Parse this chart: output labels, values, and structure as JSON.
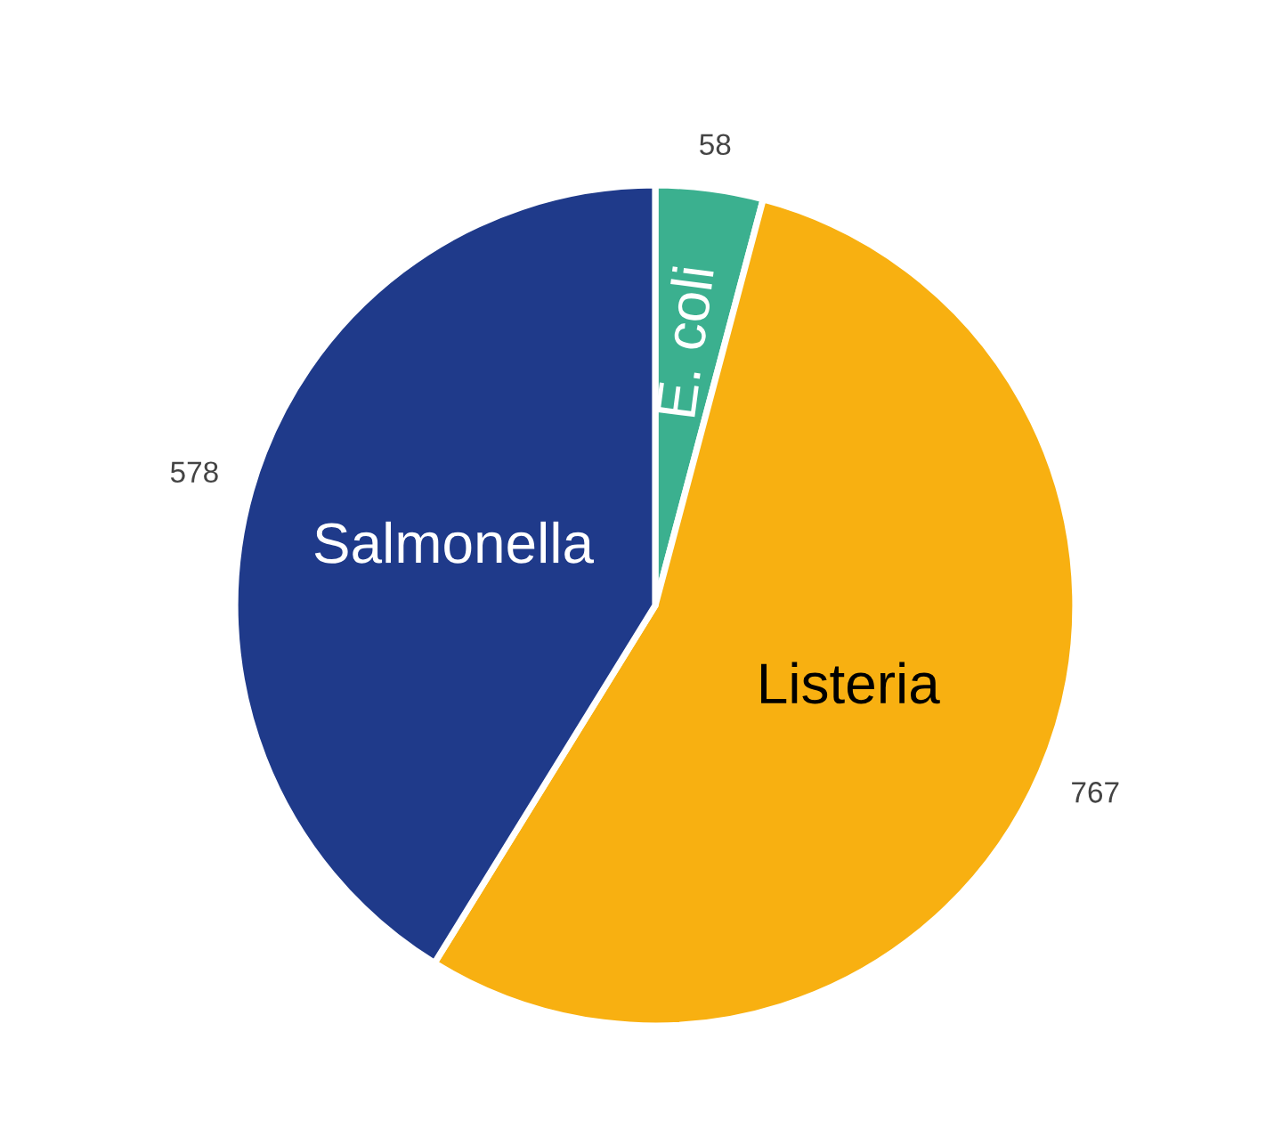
{
  "chart_data": {
    "type": "pie",
    "categories": [
      "E. coli",
      "Listeria",
      "Salmonella"
    ],
    "values": [
      58,
      767,
      578
    ],
    "colors": [
      "#3bb08f",
      "#f8b011",
      "#1f3a8a"
    ],
    "data_labels": true
  }
}
